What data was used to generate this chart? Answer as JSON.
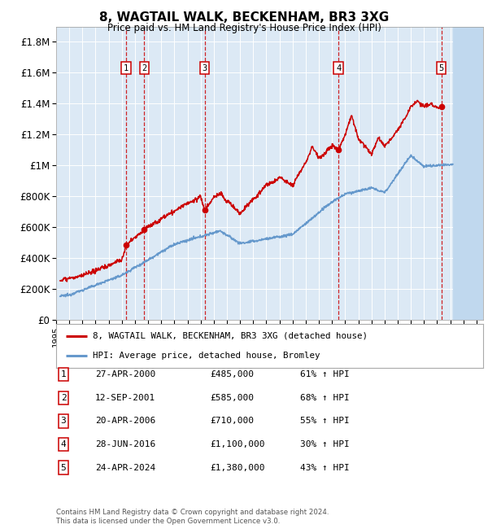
{
  "title": "8, WAGTAIL WALK, BECKENHAM, BR3 3XG",
  "subtitle": "Price paid vs. HM Land Registry's House Price Index (HPI)",
  "ylabel_ticks": [
    "£0",
    "£200K",
    "£400K",
    "£600K",
    "£800K",
    "£1M",
    "£1.2M",
    "£1.4M",
    "£1.6M",
    "£1.8M"
  ],
  "ytick_vals": [
    0,
    200000,
    400000,
    600000,
    800000,
    1000000,
    1200000,
    1400000,
    1600000,
    1800000
  ],
  "xmin": 1995.3,
  "xmax": 2027.5,
  "ymin": 0,
  "ymax": 1900000,
  "sale_dates": [
    2000.32,
    2001.71,
    2006.3,
    2016.49,
    2024.32
  ],
  "sale_prices": [
    485000,
    585000,
    710000,
    1100000,
    1380000
  ],
  "sale_labels": [
    "1",
    "2",
    "3",
    "4",
    "5"
  ],
  "vline_color": "#cc0000",
  "sale_marker_color": "#cc0000",
  "hpi_line_color": "#6699cc",
  "price_line_color": "#cc0000",
  "legend_label_price": "8, WAGTAIL WALK, BECKENHAM, BR3 3XG (detached house)",
  "legend_label_hpi": "HPI: Average price, detached house, Bromley",
  "table_data": [
    [
      "1",
      "27-APR-2000",
      "£485,000",
      "61% ↑ HPI"
    ],
    [
      "2",
      "12-SEP-2001",
      "£585,000",
      "68% ↑ HPI"
    ],
    [
      "3",
      "20-APR-2006",
      "£710,000",
      "55% ↑ HPI"
    ],
    [
      "4",
      "28-JUN-2016",
      "£1,100,000",
      "30% ↑ HPI"
    ],
    [
      "5",
      "24-APR-2024",
      "£1,380,000",
      "43% ↑ HPI"
    ]
  ],
  "footer_text": "Contains HM Land Registry data © Crown copyright and database right 2024.\nThis data is licensed under the Open Government Licence v3.0.",
  "background_color": "#ffffff",
  "plot_bg_color": "#dce9f5",
  "hatch_color": "#c0d8ee",
  "grid_color": "#ffffff"
}
